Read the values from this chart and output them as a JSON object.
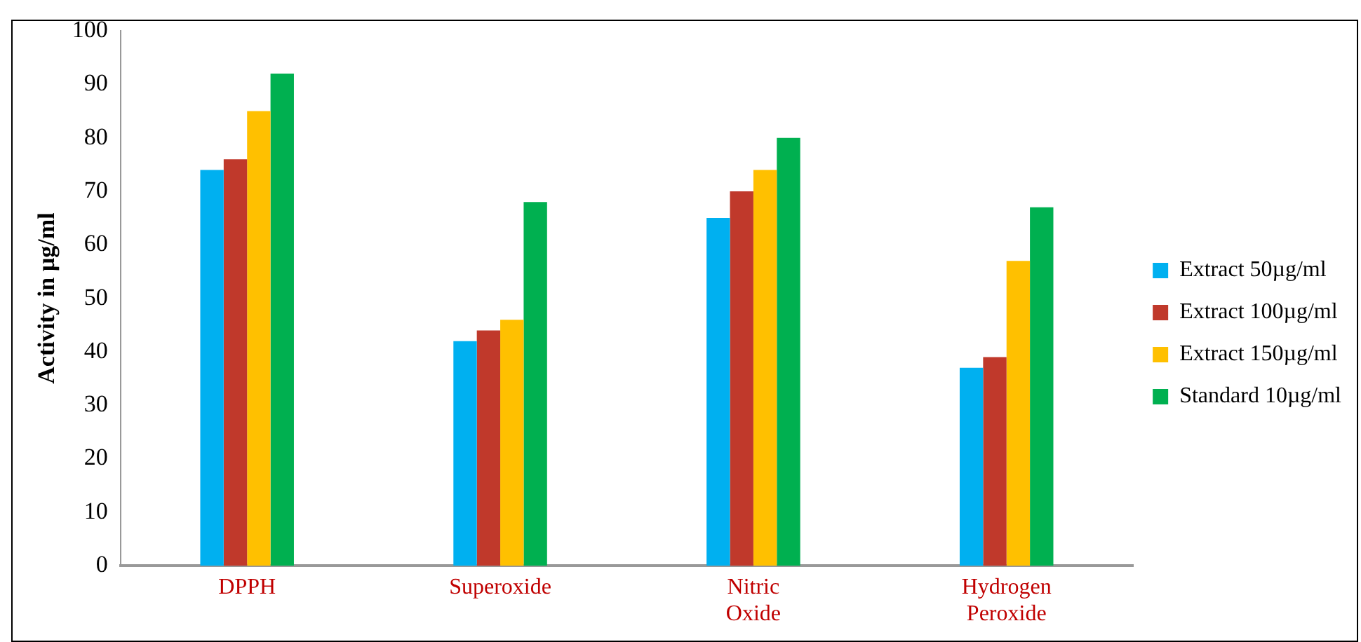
{
  "chart_data": {
    "type": "bar",
    "ylabel": "Activity in µg/ml",
    "categories": [
      "DPPH",
      "Superoxide",
      "Nitric Oxide",
      "Hydrogen Peroxide"
    ],
    "series": [
      {
        "name": "Extract 50µg/ml",
        "color": "#00b0f0",
        "values": [
          74,
          42,
          65,
          37
        ]
      },
      {
        "name": "Extract 100µg/ml",
        "color": "#c0392b",
        "values": [
          76,
          44,
          70,
          39
        ]
      },
      {
        "name": "Extract 150µg/ml",
        "color": "#ffc000",
        "values": [
          85,
          46,
          74,
          57
        ]
      },
      {
        "name": "Standard 10µg/ml",
        "color": "#00b050",
        "values": [
          92,
          68,
          80,
          67
        ]
      }
    ],
    "ylim": [
      0,
      100
    ],
    "yticks": [
      0,
      10,
      20,
      30,
      40,
      50,
      60,
      70,
      80,
      90,
      100
    ],
    "grid": false,
    "legend": "right"
  }
}
